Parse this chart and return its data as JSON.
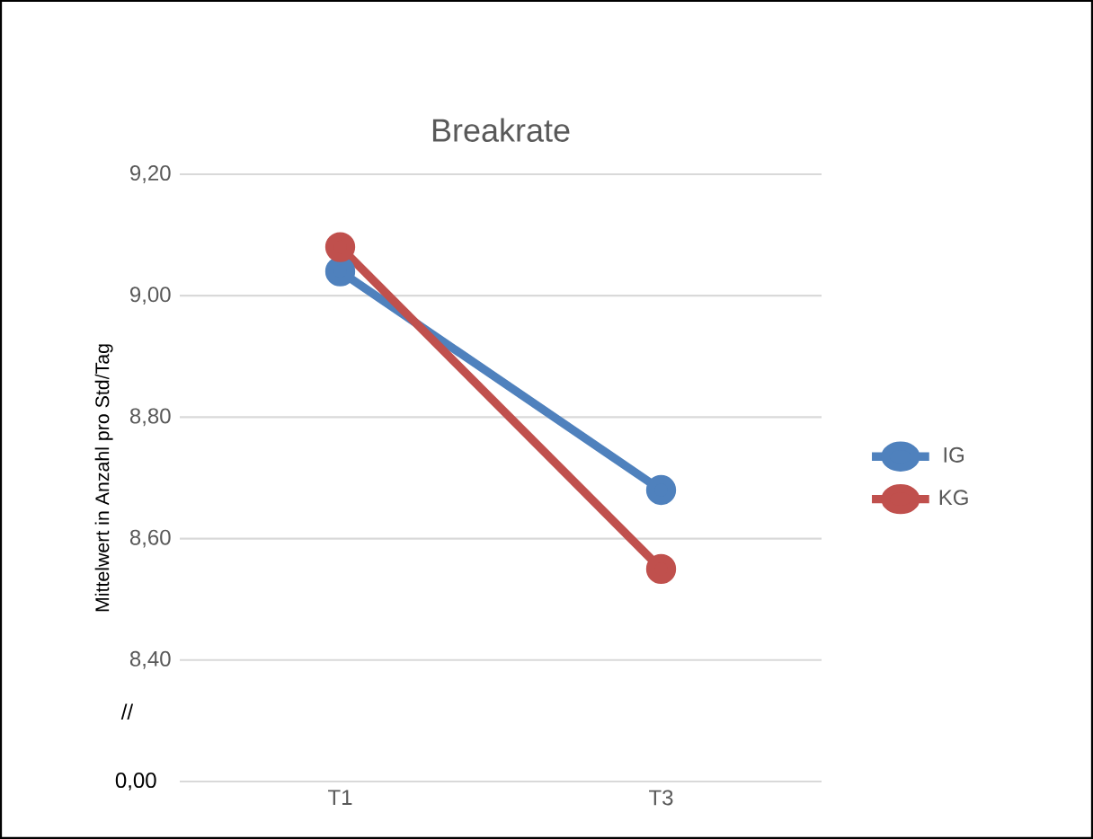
{
  "chart_data": {
    "type": "line",
    "title": "Breakrate",
    "ylabel": "Mittelwert in Anzahl pro Std/Tag",
    "categories": [
      "T1",
      "T3"
    ],
    "series": [
      {
        "name": "IG",
        "color": "#4f81bd",
        "values": [
          9.04,
          8.68
        ]
      },
      {
        "name": "KG",
        "color": "#c0504d",
        "values": [
          9.08,
          8.55
        ]
      }
    ],
    "ylim": [
      8.2,
      9.2
    ],
    "yticks": [
      {
        "value": 8.4,
        "label": "8,40"
      },
      {
        "value": 8.6,
        "label": "8,60"
      },
      {
        "value": 8.8,
        "label": "8,80"
      },
      {
        "value": 9.0,
        "label": "9,00"
      },
      {
        "value": 9.2,
        "label": "9,20"
      }
    ],
    "annotations": [
      "//",
      "0,00"
    ],
    "grid": "y",
    "legend": "right",
    "marker": "circle",
    "line_style": "solid"
  }
}
